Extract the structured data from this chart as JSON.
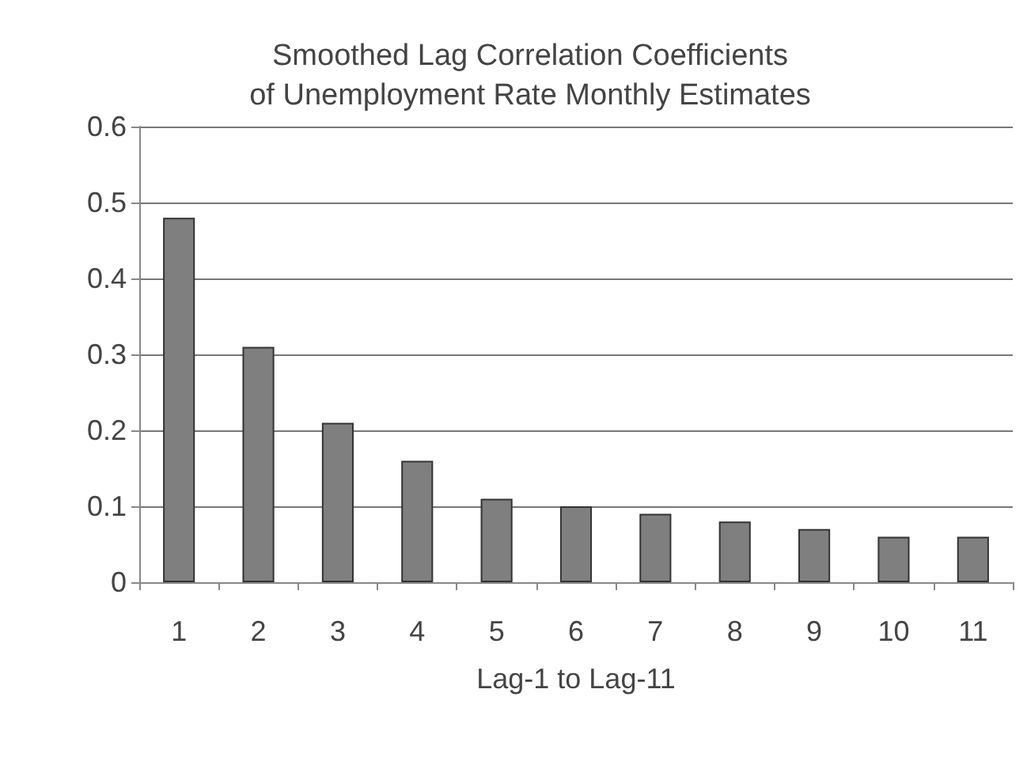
{
  "chart_data": {
    "type": "bar",
    "title": "Smoothed Lag Correlation Coefficients\nof Unemployment Rate Monthly Estimates",
    "xlabel": "Lag-1 to Lag-11",
    "categories": [
      "1",
      "2",
      "3",
      "4",
      "5",
      "6",
      "7",
      "8",
      "9",
      "10",
      "11"
    ],
    "values": [
      0.48,
      0.31,
      0.21,
      0.16,
      0.11,
      0.1,
      0.09,
      0.08,
      0.07,
      0.06,
      0.06
    ],
    "color": "#7f7f7f",
    "ylim": [
      0,
      0.6
    ],
    "yticks": [
      0,
      0.1,
      0.2,
      0.3,
      0.4,
      0.5,
      0.6
    ],
    "grid": "y"
  }
}
